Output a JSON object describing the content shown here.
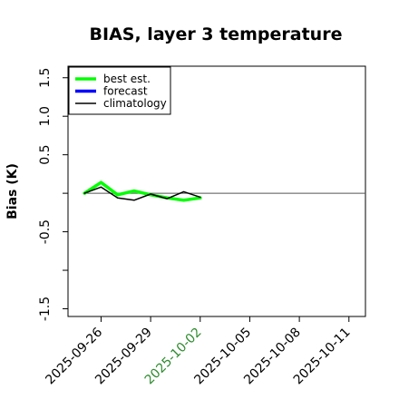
{
  "chart_data": {
    "type": "line",
    "title": "BIAS, layer 3 temperature",
    "ylabel": "Bias (K)",
    "xlabel": "",
    "ylim": [
      -1.6,
      1.65
    ],
    "yticks": [
      -1.5,
      -1.0,
      -0.5,
      0.0,
      0.5,
      1.0,
      1.5
    ],
    "ytick_labels": [
      "-1.5",
      "",
      "-0.5",
      "",
      "0.5",
      "1.0",
      "1.5"
    ],
    "xlim": [
      "2025-09-24",
      "2025-10-12"
    ],
    "xticks": [
      "2025-09-26",
      "2025-09-29",
      "2025-10-02",
      "2025-10-05",
      "2025-10-08",
      "2025-10-11"
    ],
    "highlight_xtick": "2025-10-02",
    "highlight_color": "#2e8b2e",
    "zero_line": true,
    "grid": false,
    "legend_position": "top-left",
    "series": [
      {
        "name": "best est.",
        "color": "#00ff00",
        "x": [
          "2025-09-25",
          "2025-09-26",
          "2025-09-27",
          "2025-09-28",
          "2025-09-29",
          "2025-09-30",
          "2025-10-01",
          "2025-10-02"
        ],
        "y": [
          0.0,
          0.14,
          -0.02,
          0.03,
          -0.02,
          -0.06,
          -0.09,
          -0.06
        ]
      },
      {
        "name": "forecast",
        "color": "#0000ff",
        "x": [],
        "y": []
      },
      {
        "name": "climatology",
        "color": "#000000",
        "x": [
          "2025-09-25",
          "2025-09-26",
          "2025-09-27",
          "2025-09-28",
          "2025-09-29",
          "2025-09-30",
          "2025-10-01",
          "2025-10-02"
        ],
        "y": [
          0.0,
          0.08,
          -0.06,
          -0.09,
          -0.01,
          -0.07,
          0.02,
          -0.05
        ]
      }
    ]
  }
}
